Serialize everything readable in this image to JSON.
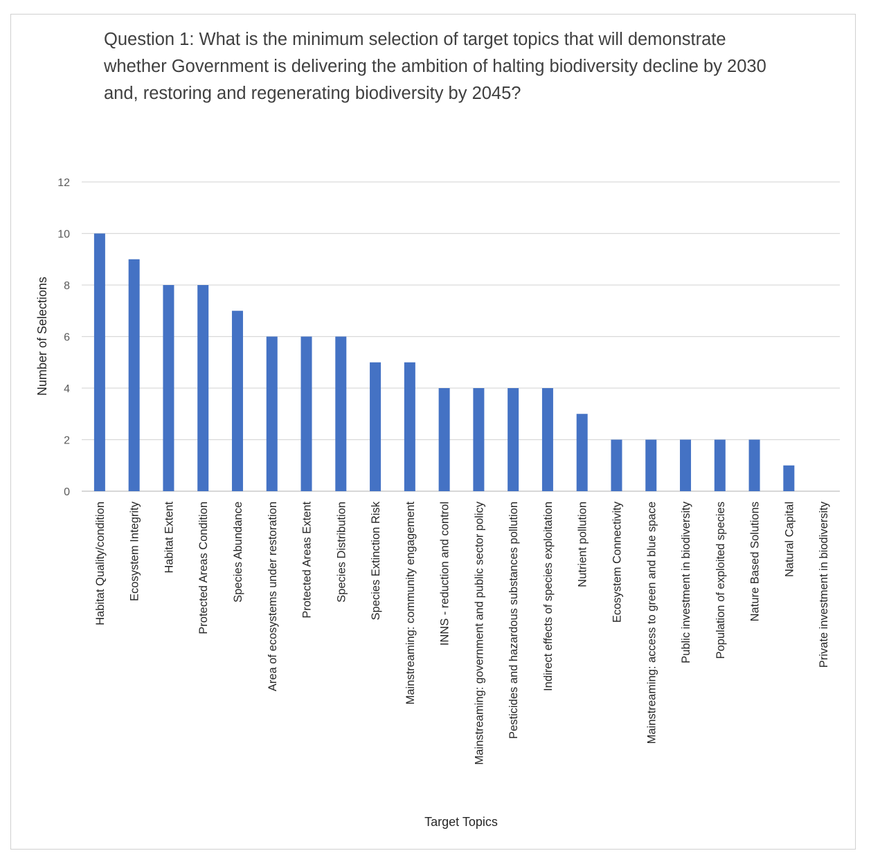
{
  "chart_data": {
    "type": "bar",
    "title": "Question 1: What is the minimum selection of target topics that will demonstrate whether Government is delivering the ambition of halting biodiversity decline by 2030 and, restoring and regenerating biodiversity by 2045?",
    "xlabel": "Target Topics",
    "ylabel": "Number of Selections",
    "ylim": [
      0,
      12
    ],
    "yticks": [
      "0",
      "2",
      "4",
      "6",
      "8",
      "10",
      "12"
    ],
    "grid": true,
    "bar_color": "#4472C4",
    "categories": [
      "Habitat Quality/condition",
      "Ecosystem Integrity",
      "Habitat Extent",
      "Protected Areas Condition",
      "Species Abundance",
      "Area of ecosystems under restoration",
      "Protected Areas Extent",
      "Species Distribution",
      "Species Extinction Risk",
      "Mainstreaming: community engagement",
      "INNS - reduction and control",
      "Mainstreaming: government and public sector policy",
      "Pesticides and hazardous substances pollution",
      "Indirect effects of species exploitation",
      "Nutrient pollution",
      "Ecosystem Connectivity",
      "Mainstreaming: access to green and blue space",
      "Public investment in biodiversity",
      "Population of exploited species",
      "Nature Based Solutions",
      "Natural Capital",
      "Private investment in biodiversity"
    ],
    "values": [
      10,
      9,
      8,
      8,
      7,
      6,
      6,
      6,
      5,
      5,
      4,
      4,
      4,
      4,
      3,
      2,
      2,
      2,
      2,
      2,
      1,
      0
    ]
  }
}
